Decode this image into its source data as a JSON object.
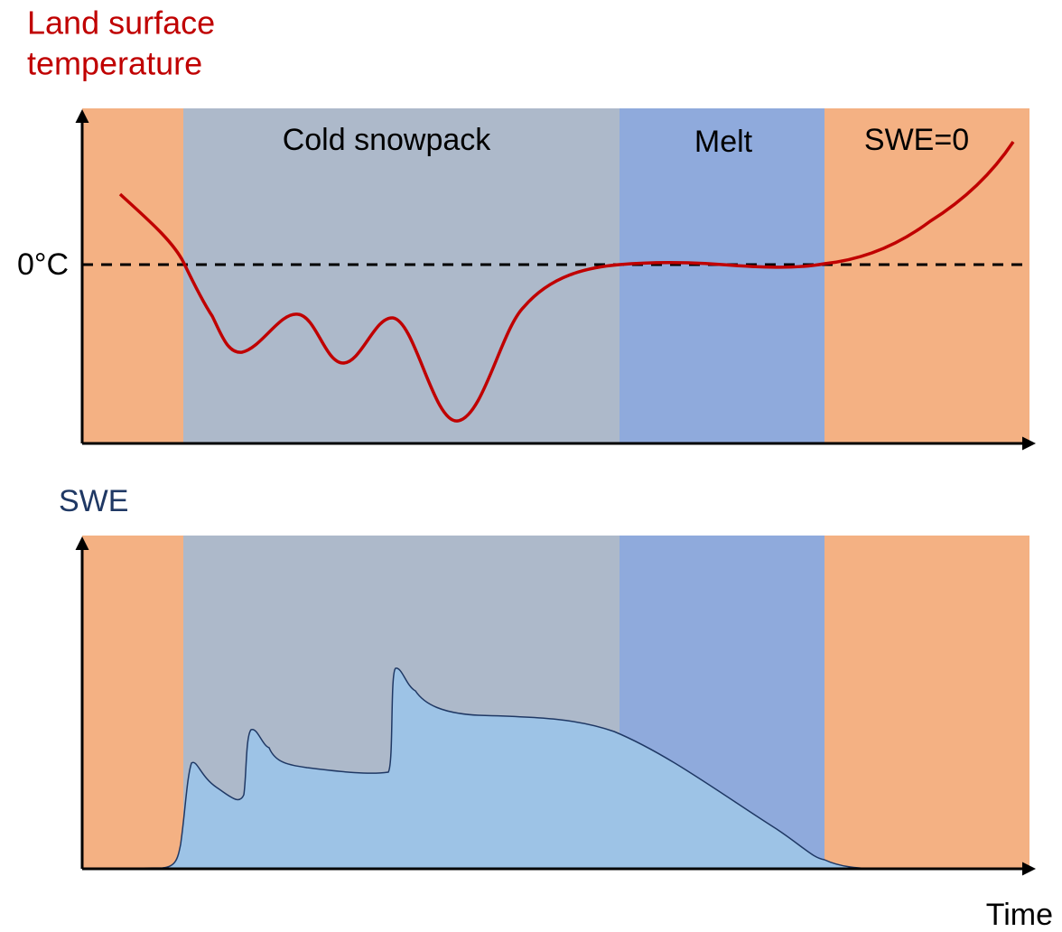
{
  "top_panel": {
    "title": [
      "Land surface",
      "temperature"
    ],
    "zero_label": "0°C",
    "phases": [
      "Cold snowpack",
      "Melt",
      "SWE=0"
    ]
  },
  "bottom_panel": {
    "title": "SWE",
    "x_label": "Time"
  }
}
